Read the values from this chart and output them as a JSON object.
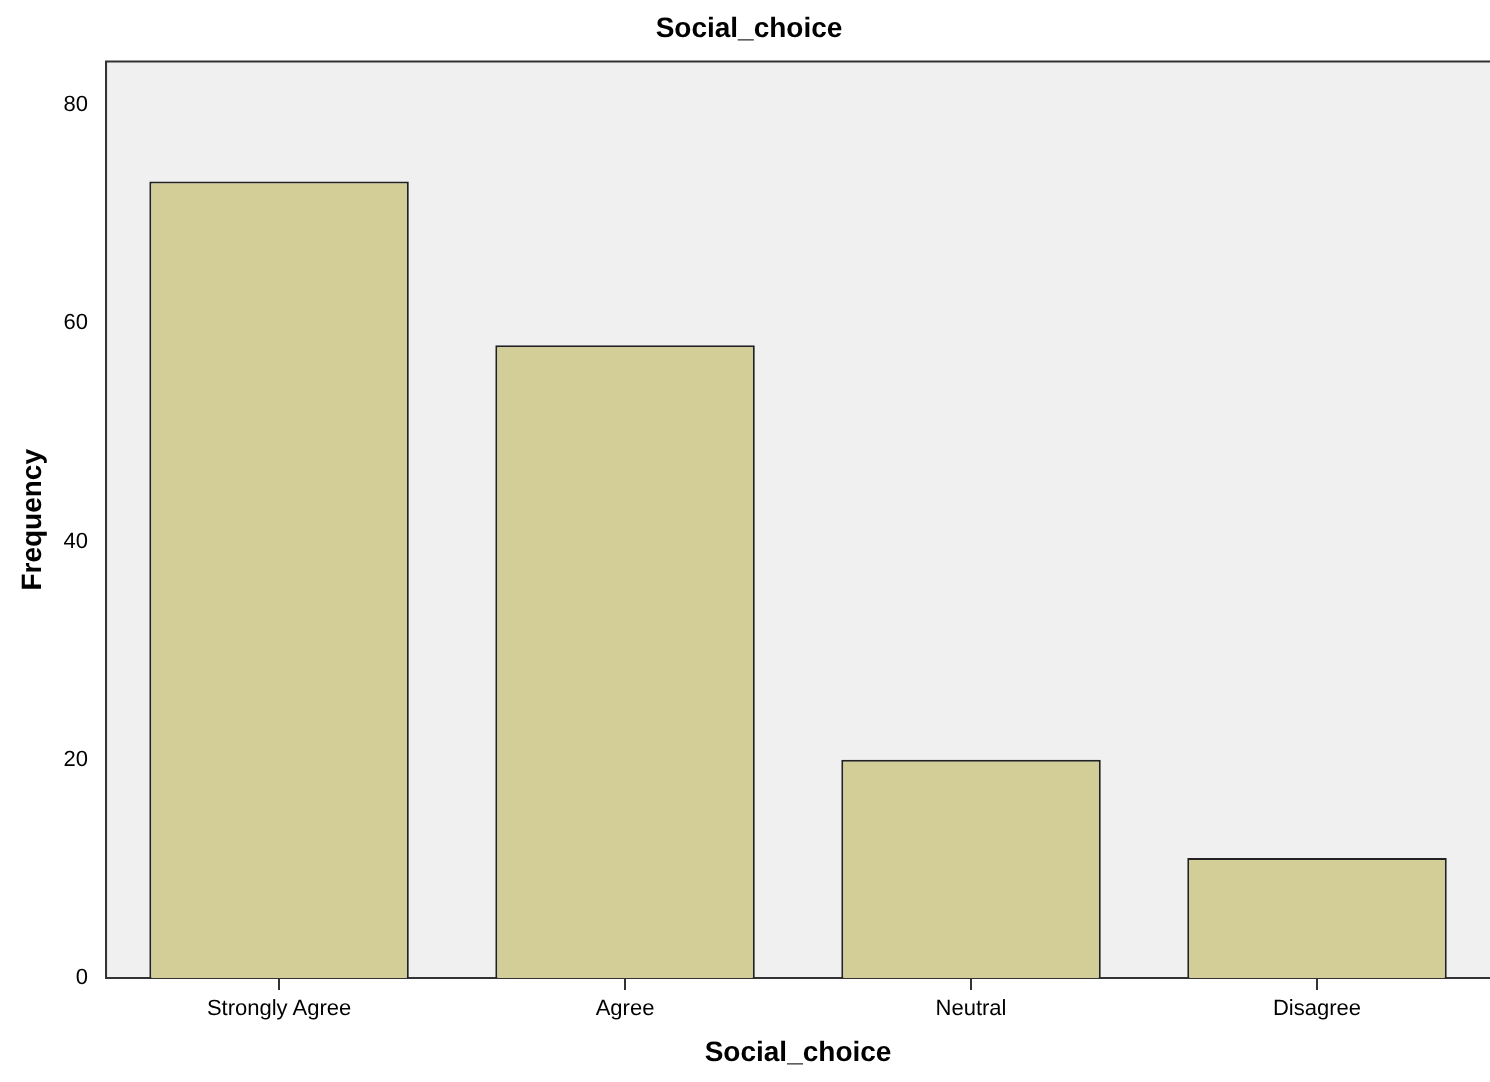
{
  "chart_data": {
    "type": "bar",
    "title": "Social_choice",
    "xlabel": "Social_choice",
    "ylabel": "Frequency",
    "categories": [
      "Strongly Agree",
      "Agree",
      "Neutral",
      "Disagree"
    ],
    "values": [
      73,
      58,
      20,
      11
    ],
    "color": "#d3ce97",
    "ylim": [
      0,
      84
    ],
    "yticks": [
      0,
      20,
      40,
      60,
      80
    ],
    "grid": false,
    "legend": false
  }
}
